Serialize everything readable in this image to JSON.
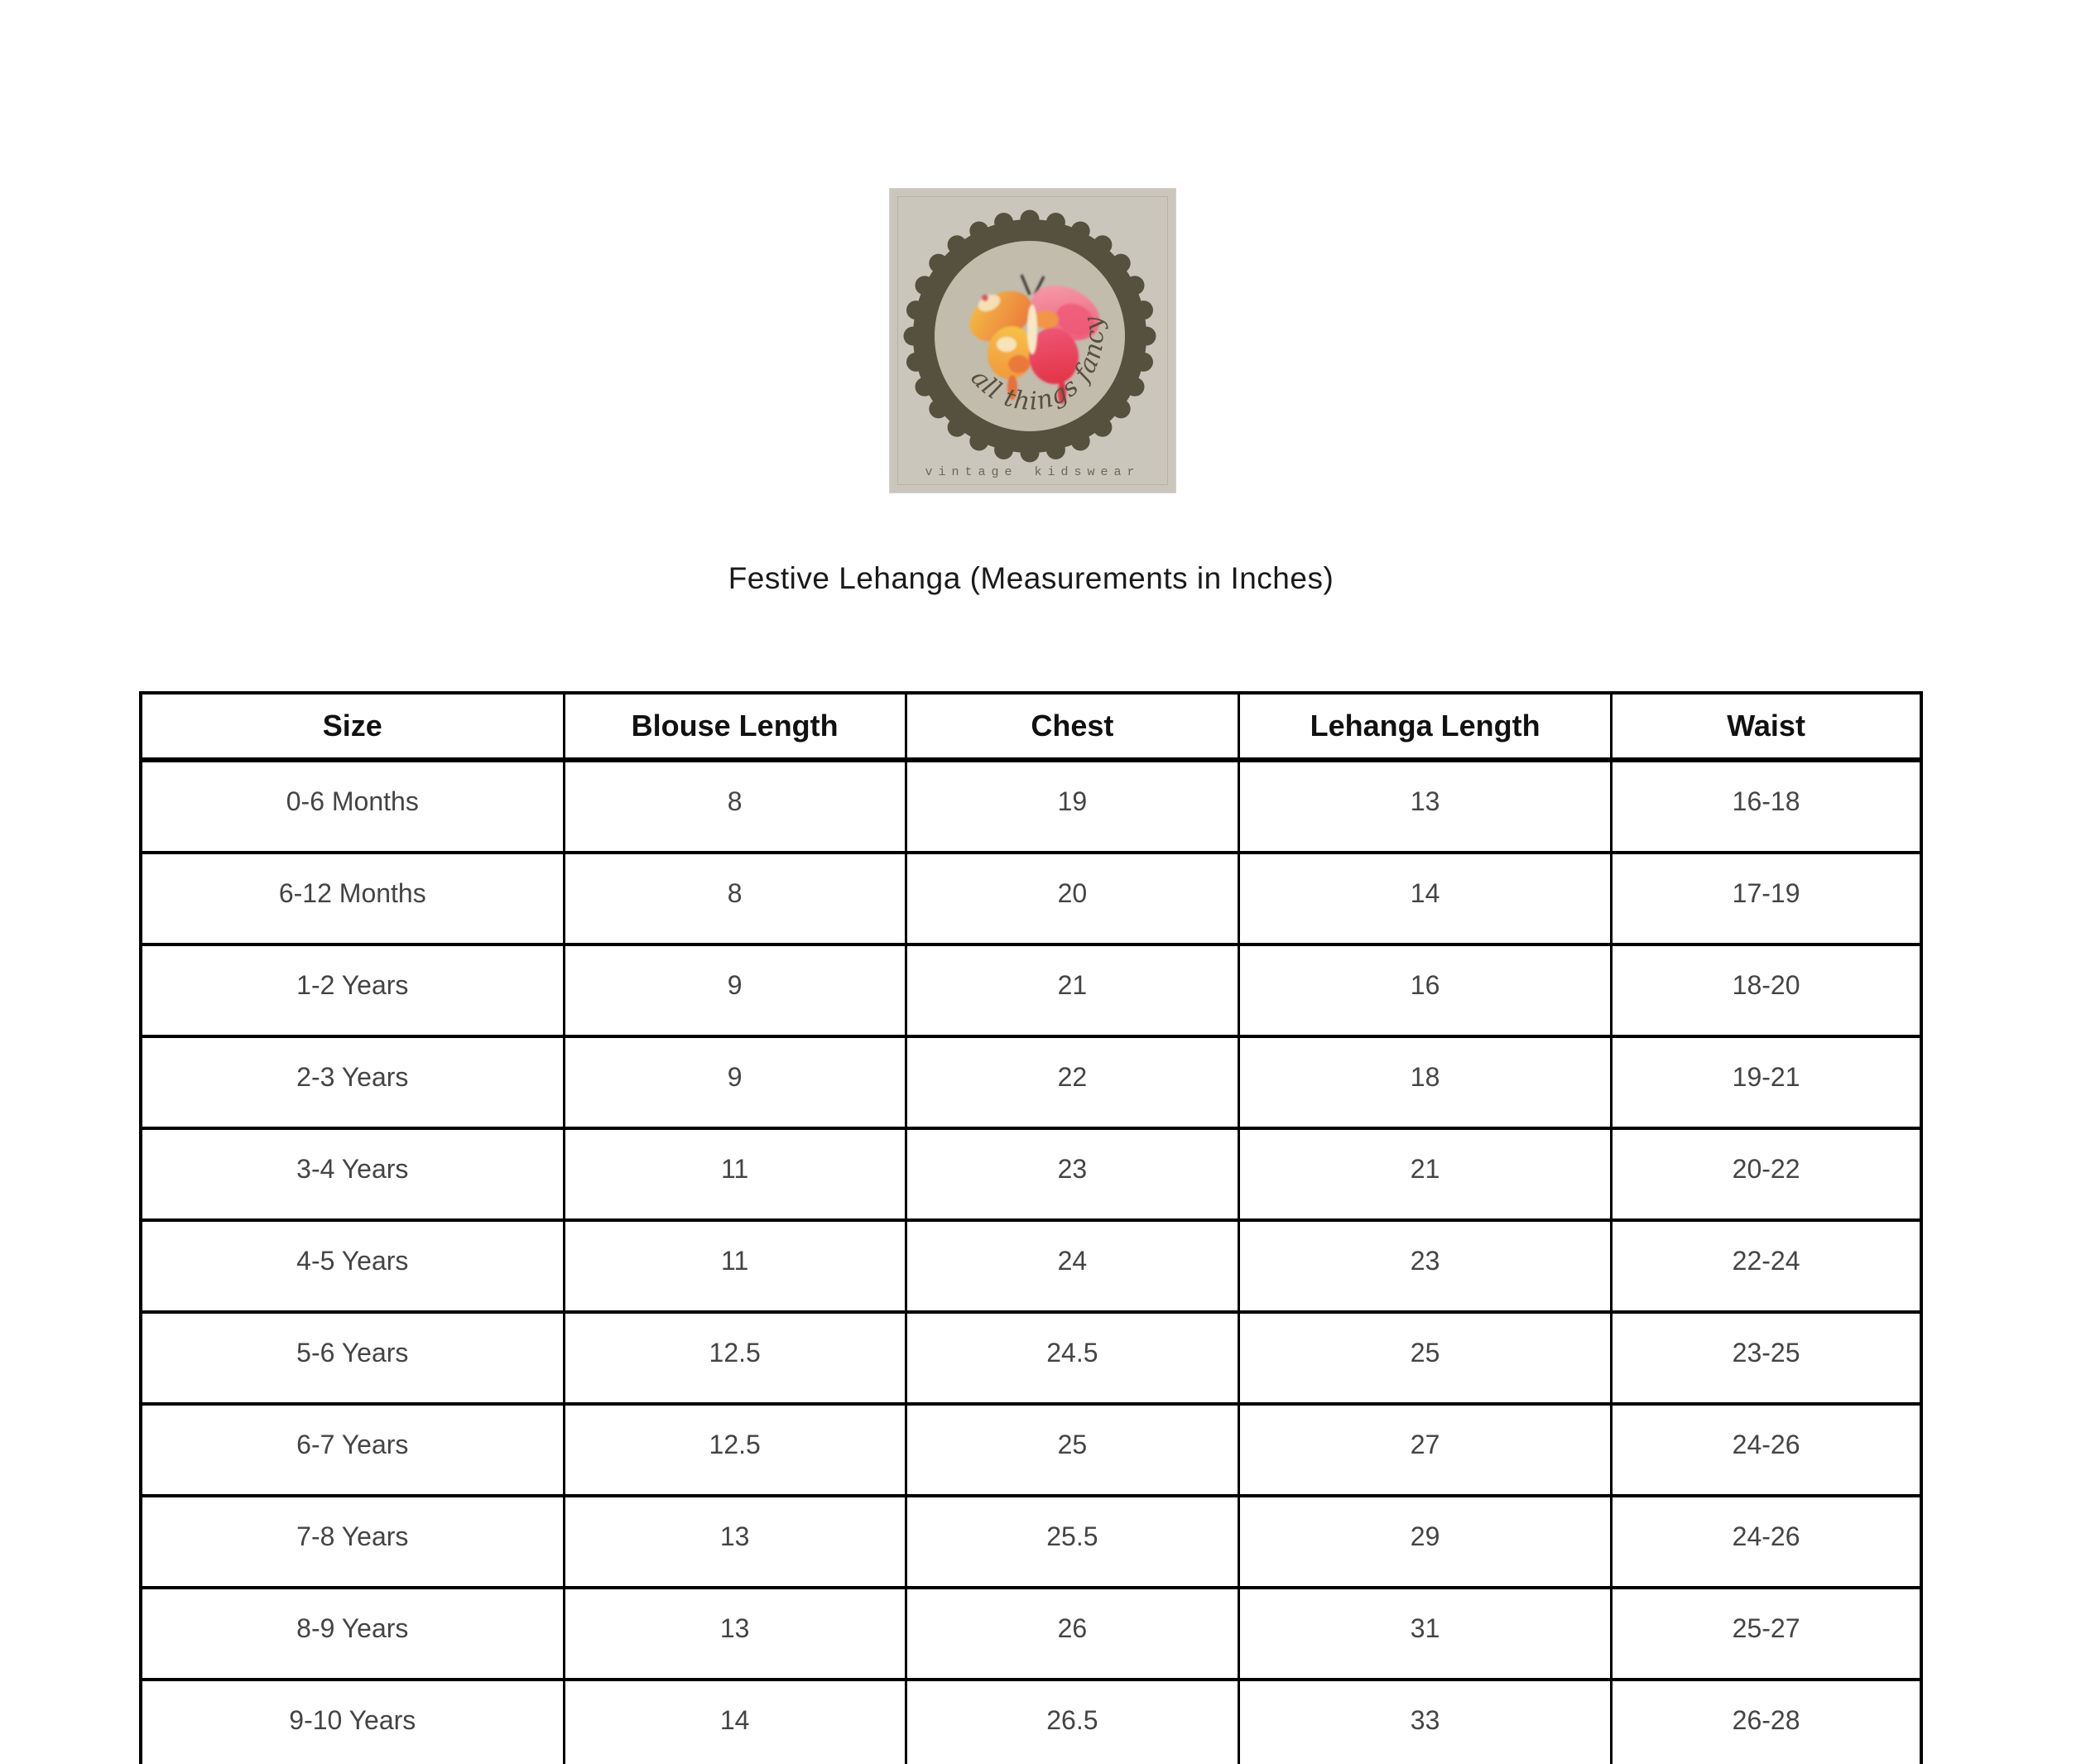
{
  "logo": {
    "brand_script": "all things fancy",
    "tagline": "vintage kidswear",
    "butterfly_icon": "watercolor-butterfly"
  },
  "title": "Festive Lehanga (Measurements in Inches)",
  "table": {
    "columns": [
      "Size",
      "Blouse Length",
      "Chest",
      "Lehanga Length",
      "Waist"
    ],
    "rows": [
      [
        "0-6 Months",
        "8",
        "19",
        "13",
        "16-18"
      ],
      [
        "6-12 Months",
        "8",
        "20",
        "14",
        "17-19"
      ],
      [
        "1-2 Years",
        "9",
        "21",
        "16",
        "18-20"
      ],
      [
        "2-3 Years",
        "9",
        "22",
        "18",
        "19-21"
      ],
      [
        "3-4 Years",
        "11",
        "23",
        "21",
        "20-22"
      ],
      [
        "4-5 Years",
        "11",
        "24",
        "23",
        "22-24"
      ],
      [
        "5-6 Years",
        "12.5",
        "24.5",
        "25",
        "23-25"
      ],
      [
        "6-7 Years",
        "12.5",
        "25",
        "27",
        "24-26"
      ],
      [
        "7-8 Years",
        "13",
        "25.5",
        "29",
        "24-26"
      ],
      [
        "8-9 Years",
        "13",
        "26",
        "31",
        "25-27"
      ],
      [
        "9-10 Years",
        "14",
        "26.5",
        "33",
        "26-28"
      ]
    ]
  },
  "colors": {
    "page_bg": "#ffffff",
    "card_bg": "#cbc6bb",
    "card_frame": "#a8a291",
    "badge_ring": "#56503e",
    "badge_inner": "#c2bcad",
    "script_text": "#57503e",
    "tagline_text": "#6e6758",
    "title_text": "#1a1a1a",
    "header_text": "#111111",
    "body_text": "#444444",
    "table_border": "#000000",
    "butterfly_orange": "#f2993c",
    "butterfly_orange_deep": "#e8713a",
    "butterfly_yellow": "#f6c145",
    "butterfly_pink": "#f6a3ae",
    "butterfly_pink_deep": "#ee5574",
    "butterfly_red": "#e23448",
    "butterfly_pale": "#f6e9c8",
    "antenna": "#33312a"
  }
}
